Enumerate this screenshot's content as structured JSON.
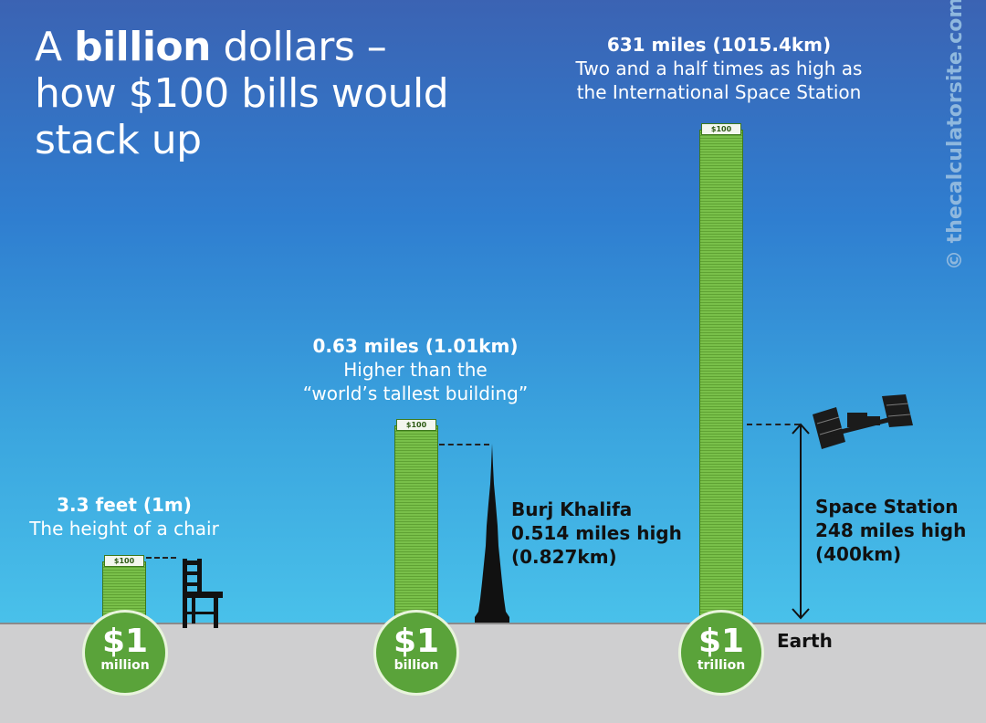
{
  "title": {
    "prefix": "A ",
    "bold": "billion",
    "suffix": " dollars –",
    "line2": "how $100 bills would",
    "line3": "stack up"
  },
  "watermark": "© thecalculatorsite.com",
  "bill_label": "100",
  "stacks": [
    {
      "coin_amount": "$1",
      "coin_unit": "million",
      "headline": "3.3 feet (1m)",
      "subtitle": "The height of a chair",
      "subtitle2": ""
    },
    {
      "coin_amount": "$1",
      "coin_unit": "billion",
      "headline": "0.63 miles (1.01km)",
      "subtitle": "Higher than the",
      "subtitle2": "“world’s tallest building”"
    },
    {
      "coin_amount": "$1",
      "coin_unit": "trillion",
      "headline": "631 miles (1015.4km)",
      "subtitle": "Two and a half times as high as",
      "subtitle2": "the International Space Station"
    }
  ],
  "references": {
    "burj": {
      "name": "Burj Khalifa",
      "line2": "0.514 miles high",
      "line3": "(0.827km)"
    },
    "iss": {
      "name": "Space Station",
      "line2": "248 miles high",
      "line3": "(400km)"
    },
    "earth": "Earth"
  },
  "icons": {
    "chair": "chair-icon",
    "burj": "burj-khalifa-icon",
    "iss": "space-station-icon",
    "arrow": "double-arrow-icon"
  }
}
